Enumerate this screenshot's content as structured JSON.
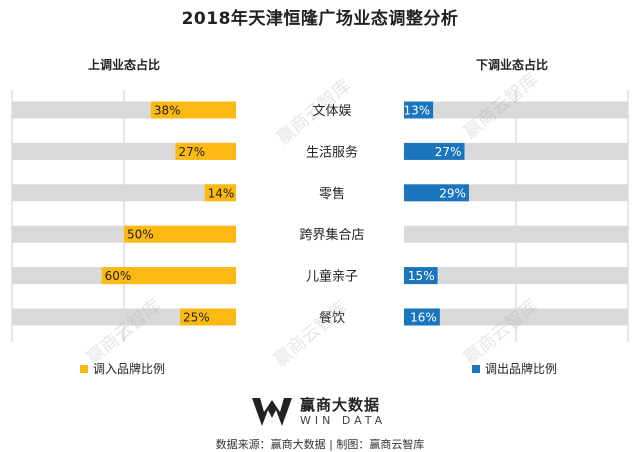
{
  "title": "2018年天津恒隆广场业态调整分析",
  "left_header": "上调业态占比",
  "right_header": "下调业态占比",
  "legend": {
    "left_label": "调入品牌比例",
    "right_label": "调出品牌比例"
  },
  "colors": {
    "in_bar": "#FDB913",
    "out_bar": "#1A75BC",
    "track": "#D9D9D9",
    "grid": "#CCCCCC"
  },
  "logo": {
    "name_cn": "赢商大数据",
    "name_en": "WIN DATA"
  },
  "watermark_text": "赢商云智库",
  "source": "数据来源：赢商大数据 | 制图：赢商云智库",
  "chart_data": {
    "type": "bar",
    "categories": [
      "文体娱",
      "生活服务",
      "零售",
      "跨界集合店",
      "儿童亲子",
      "餐饮"
    ],
    "series": [
      {
        "name": "调入品牌比例",
        "values": [
          38,
          27,
          14,
          50,
          60,
          25
        ],
        "labels": [
          "38%",
          "27%",
          "14%",
          "50%",
          "60%",
          "25%"
        ]
      },
      {
        "name": "调出品牌比例",
        "values": [
          13,
          27,
          29,
          null,
          15,
          16
        ],
        "labels": [
          "13%",
          "27%",
          "29%",
          "",
          "15%",
          "16%"
        ]
      }
    ],
    "xlim": [
      0,
      100
    ],
    "grid": true
  }
}
